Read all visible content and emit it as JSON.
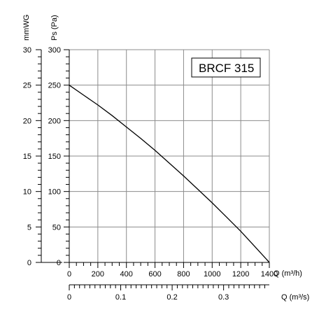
{
  "chart_data": {
    "type": "line",
    "model_label": "BRCF 315",
    "left_axis_title": "mmWG",
    "ylabel": "Ps (Pa)",
    "xlabel": "Q (m³/h)",
    "x2label": "Q (m³/s)",
    "xlim": [
      0,
      1400
    ],
    "ylim": [
      0,
      300
    ],
    "mmwg_lim": [
      0,
      30
    ],
    "x2_lim": [
      0,
      0.3889
    ],
    "x_ticks": [
      0,
      200,
      400,
      600,
      800,
      1000,
      1200,
      1400
    ],
    "y_ticks": [
      0,
      50,
      100,
      150,
      200,
      250,
      300
    ],
    "mmwg_ticks": [
      0,
      5,
      10,
      15,
      20,
      25,
      30
    ],
    "x2_ticks": [
      0,
      0.1,
      0.2,
      0.3
    ],
    "x2_tick_labels": [
      "0",
      "0.1",
      "0.2",
      "0.3"
    ],
    "grid": true,
    "series": [
      {
        "x": [
          0,
          100,
          200,
          300,
          400,
          500,
          600,
          700,
          800,
          900,
          1000,
          1100,
          1200,
          1300,
          1400
        ],
        "y": [
          250,
          236,
          222,
          207,
          191,
          175,
          158,
          140,
          122,
          103,
          84,
          64,
          44,
          22,
          0
        ]
      }
    ]
  }
}
